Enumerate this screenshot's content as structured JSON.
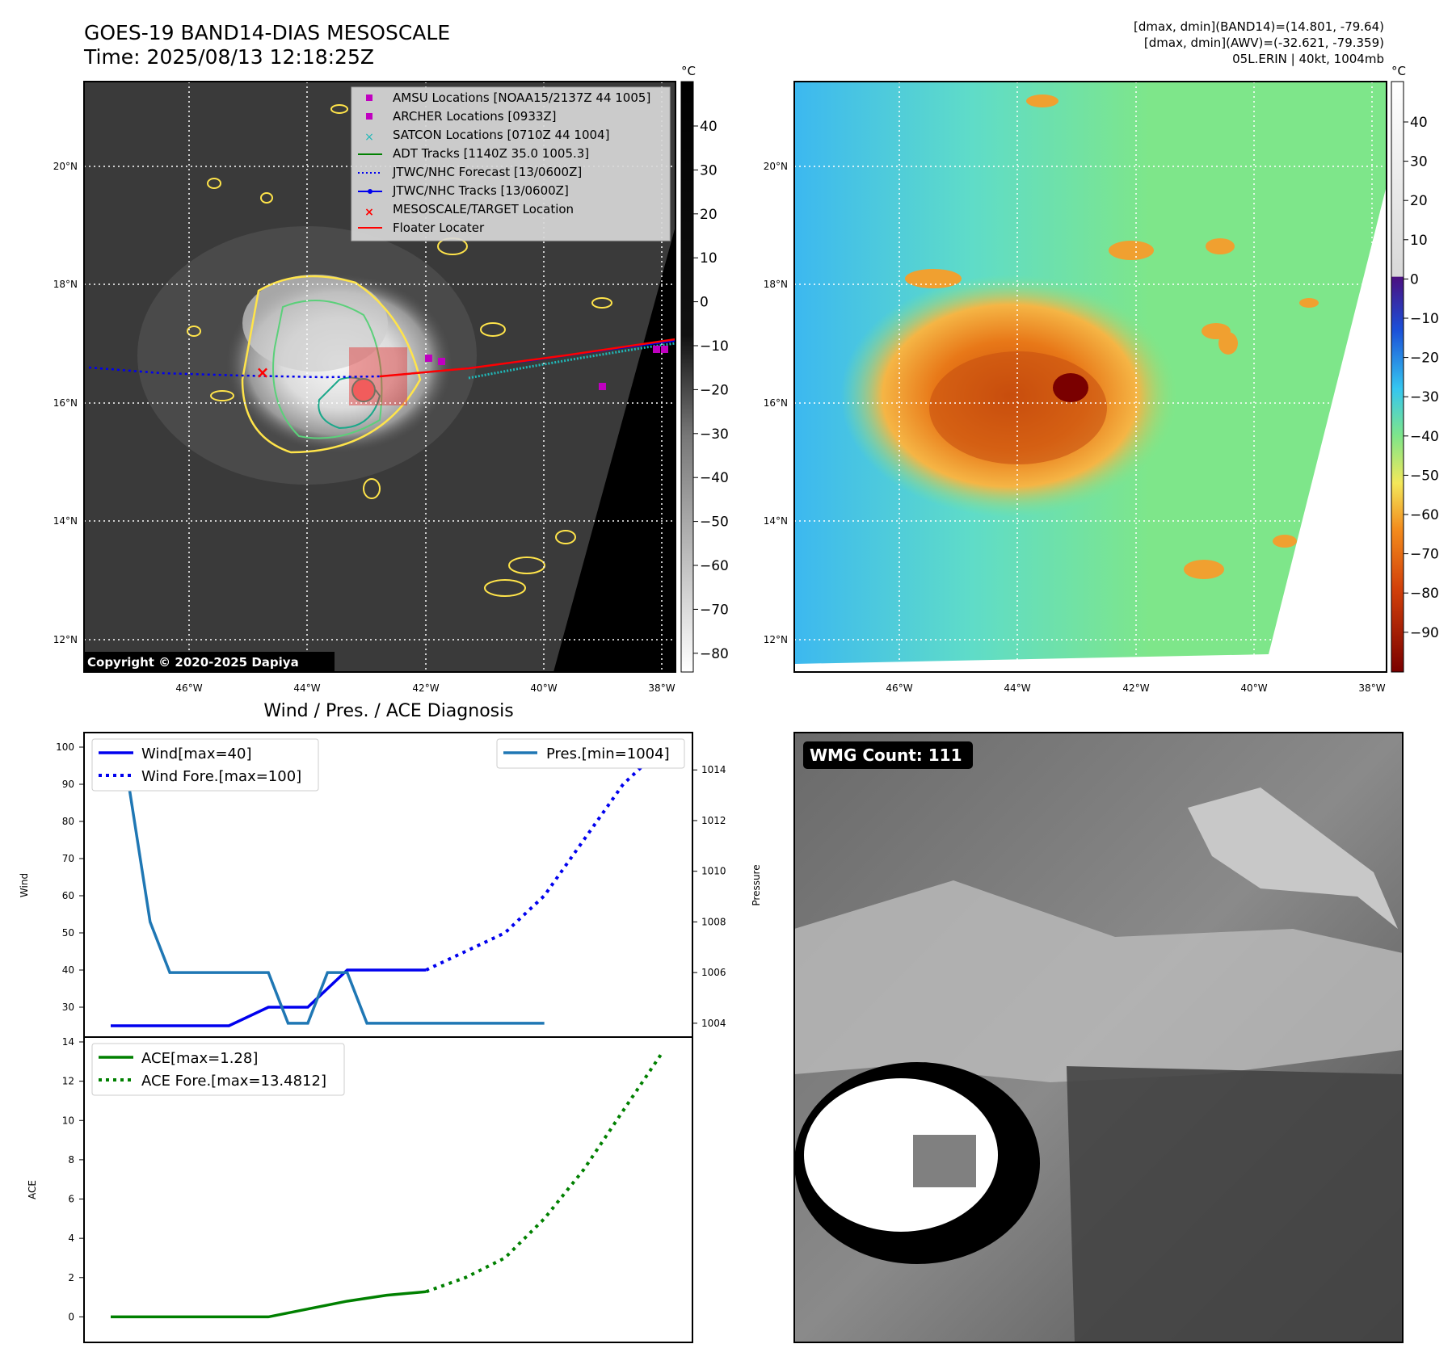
{
  "header": {
    "title_line1": "GOES-19 BAND14-DIAS MESOSCALE",
    "title_line2": "Time: 2025/08/13 12:18:25Z",
    "right_line1": "[dmax, dmin](BAND14)=(14.801, -79.64)",
    "right_line2": "[dmax, dmin](AWV)=(-32.621, -79.359)",
    "right_line3": "05L.ERIN | 40kt, 1004mb"
  },
  "map": {
    "lat_labels": [
      "20°N",
      "18°N",
      "16°N",
      "14°N",
      "12°N"
    ],
    "lon_labels": [
      "46°W",
      "44°W",
      "42°W",
      "40°W",
      "38°W"
    ],
    "copyright": "Copyright © 2020-2025 Dapiya",
    "colorbar_unit": "°C",
    "left_colorbar_ticks": [
      "40",
      "30",
      "20",
      "10",
      "0",
      "−10",
      "−20",
      "−30",
      "−40",
      "−50",
      "−60",
      "−70",
      "−80"
    ],
    "right_colorbar_ticks": [
      "40",
      "30",
      "20",
      "10",
      "0",
      "−10",
      "−20",
      "−30",
      "−40",
      "−50",
      "−60",
      "−70",
      "−80",
      "−90"
    ],
    "legend": [
      "AMSU Locations [NOAA15/2137Z 44 1005]",
      "ARCHER Locations [0933Z]",
      "SATCON Locations [0710Z 44 1004]",
      "ADT Tracks [1140Z 35.0 1005.3]",
      "JTWC/NHC Forecast [13/0600Z]",
      "JTWC/NHC Tracks [13/0600Z]",
      "MESOSCALE/TARGET Location",
      "Floater Locater"
    ],
    "colors": {
      "amsu": "#c000c0",
      "archer": "#c000c0",
      "satcon": "#20b8b8",
      "adt": "#008000",
      "forecast": "#0000ee",
      "track": "#0000ee",
      "target": "#ff0000",
      "floater": "#ff0000"
    }
  },
  "chart_data": {
    "type": "line",
    "title": "Wind / Pres. / ACE Diagnosis",
    "wind_panel": {
      "ylabel": "Wind",
      "ylabel_right": "Pressure",
      "wind_yticks": [
        30,
        40,
        50,
        60,
        70,
        80,
        90,
        100
      ],
      "pressure_yticks": [
        1004,
        1006,
        1008,
        1010,
        1012,
        1014
      ],
      "wind_ylim": [
        25,
        100
      ],
      "pressure_ylim": [
        1003.9,
        1014.9
      ],
      "legend_left": [
        "Wind[max=40]",
        "Wind Fore.[max=100]"
      ],
      "legend_right": [
        "Pres.[min=1004]"
      ],
      "series": [
        {
          "name": "Wind[max=40]",
          "x": [
            0,
            1,
            2,
            3,
            4,
            5,
            6,
            7,
            8
          ],
          "values": [
            25,
            25,
            25,
            25,
            30,
            30,
            40,
            40,
            40
          ]
        },
        {
          "name": "Wind Fore.[max=100]",
          "x": [
            8,
            9,
            10,
            11,
            12,
            13,
            14
          ],
          "values": [
            40,
            45,
            50,
            60,
            75,
            90,
            100
          ]
        },
        {
          "name": "Pres.[min=1004]",
          "x": [
            0,
            0.3,
            1,
            1.5,
            2,
            2.5,
            3,
            3.5,
            4,
            4.5,
            5,
            5.5,
            6,
            6.5,
            7,
            7.5,
            8,
            8.5,
            9,
            9.5,
            10,
            10.5,
            11
          ],
          "values": [
            1015,
            1015,
            1008,
            1006,
            1006,
            1006,
            1006,
            1006,
            1006,
            1004,
            1004,
            1006,
            1006,
            1004,
            1004,
            1004,
            1004,
            1004,
            1004,
            1004,
            1004,
            1004,
            1004
          ]
        }
      ],
      "colors": {
        "wind": "#0000ee",
        "pressure": "#1f77b4"
      }
    },
    "ace_panel": {
      "ylabel": "ACE",
      "yticks": [
        0,
        2,
        4,
        6,
        8,
        10,
        12,
        14
      ],
      "ylim": [
        -0.6,
        14
      ],
      "legend": [
        "ACE[max=1.28]",
        "ACE Fore.[max=13.4812]"
      ],
      "series": [
        {
          "name": "ACE[max=1.28]",
          "x": [
            0,
            1,
            2,
            3,
            4,
            5,
            6,
            7,
            8
          ],
          "values": [
            0,
            0,
            0,
            0,
            0,
            0.4,
            0.8,
            1.1,
            1.28
          ]
        },
        {
          "name": "ACE Fore.[max=13.4812]",
          "x": [
            8,
            9,
            10,
            11,
            12,
            13,
            14
          ],
          "values": [
            1.28,
            2,
            3,
            5,
            7.5,
            10.5,
            13.48
          ]
        }
      ],
      "color": "#008000"
    }
  },
  "wmg": {
    "label": "WMG Count: 111"
  }
}
